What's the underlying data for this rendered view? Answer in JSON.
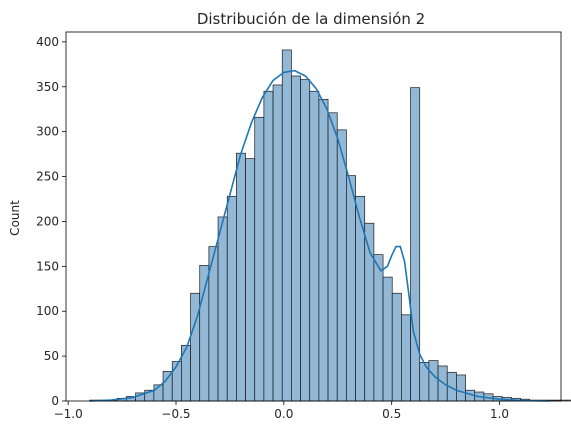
{
  "chart_data": {
    "type": "bar",
    "title": "Distribución de la dimensión 2",
    "xlabel": "",
    "ylabel": "Count",
    "xlim": [
      -1.01,
      1.285
    ],
    "ylim": [
      0,
      411
    ],
    "bin_start": -0.9,
    "bin_width": 0.0425,
    "values": [
      1,
      1,
      1,
      3,
      5,
      9,
      12,
      18,
      33,
      44,
      62,
      120,
      151,
      172,
      205,
      228,
      276,
      270,
      316,
      345,
      352,
      391,
      362,
      358,
      345,
      336,
      321,
      302,
      251,
      228,
      198,
      163,
      138,
      120,
      96,
      349,
      43,
      45,
      39,
      32,
      29,
      12,
      10,
      8,
      5,
      4,
      3,
      2,
      1,
      1,
      1,
      1,
      1,
      1
    ],
    "kde": {
      "x": [
        -0.9,
        -0.8,
        -0.7,
        -0.6,
        -0.55,
        -0.5,
        -0.45,
        -0.4,
        -0.35,
        -0.3,
        -0.25,
        -0.2,
        -0.15,
        -0.1,
        -0.05,
        0.0,
        0.05,
        0.1,
        0.15,
        0.2,
        0.25,
        0.3,
        0.35,
        0.4,
        0.45,
        0.48,
        0.5,
        0.52,
        0.54,
        0.56,
        0.58,
        0.6,
        0.63,
        0.66,
        0.7,
        0.75,
        0.8,
        0.9,
        1.0,
        1.1,
        1.23
      ],
      "y": [
        0,
        1,
        4,
        12,
        22,
        38,
        60,
        95,
        140,
        185,
        230,
        275,
        310,
        338,
        357,
        366,
        368,
        362,
        348,
        325,
        292,
        250,
        205,
        165,
        145,
        150,
        162,
        172,
        172,
        155,
        118,
        78,
        52,
        38,
        27,
        18,
        12,
        5,
        2,
        0.5,
        0
      ],
      "color": "#1f77b4"
    },
    "xticks": [
      -1.0,
      -0.5,
      0.0,
      0.5,
      1.0
    ],
    "xtick_labels": [
      "−1.0",
      "−0.5",
      "0.0",
      "0.5",
      "1.0"
    ],
    "yticks": [
      0,
      50,
      100,
      150,
      200,
      250,
      300,
      350,
      400
    ],
    "ytick_labels": [
      "0",
      "50",
      "100",
      "150",
      "200",
      "250",
      "300",
      "350",
      "400"
    ],
    "bar_fill": "#93b8d6",
    "bar_edge": "#1a1a1a",
    "grid": false,
    "legend": "none"
  }
}
